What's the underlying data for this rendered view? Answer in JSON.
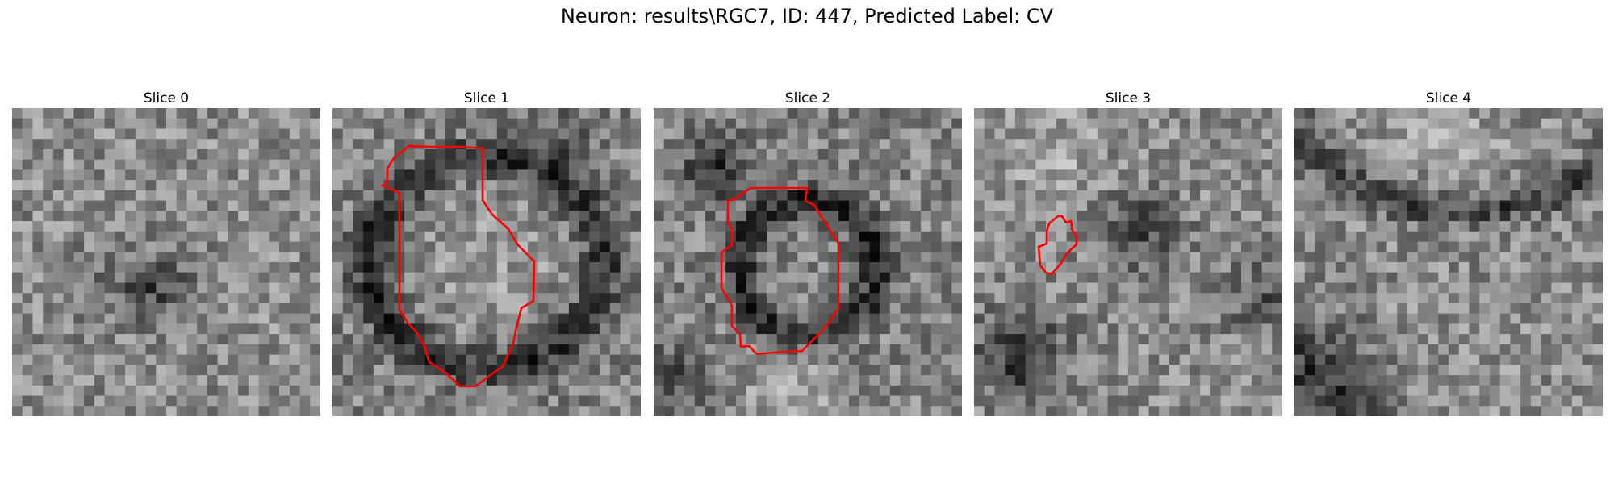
{
  "figure": {
    "suptitle": "Neuron: results\\RGC7, ID: 447, Predicted Label: CV"
  },
  "panels": [
    {
      "title": "Slice 0",
      "has_contour": false
    },
    {
      "title": "Slice 1",
      "has_contour": true
    },
    {
      "title": "Slice 2",
      "has_contour": true
    },
    {
      "title": "Slice 3",
      "has_contour": true
    },
    {
      "title": "Slice 4",
      "has_contour": false
    }
  ],
  "colors": {
    "contour": "#ff0000",
    "background": "#ffffff"
  }
}
